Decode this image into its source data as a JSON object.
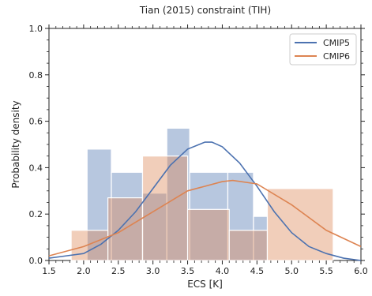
{
  "chart_data": {
    "type": "bar",
    "title": "Tian (2015) constraint (TIH)",
    "xlabel": "ECS [K]",
    "ylabel": "Probability density",
    "xlim": [
      1.5,
      6.0
    ],
    "ylim": [
      0.0,
      1.0
    ],
    "x_ticks": [
      "1.5",
      "2.0",
      "2.5",
      "3.0",
      "3.5",
      "4.0",
      "4.5",
      "5.0",
      "5.5",
      "6.0"
    ],
    "y_ticks": [
      "0.0",
      "0.2",
      "0.4",
      "0.6",
      "0.8",
      "1.0"
    ],
    "legend_position": "top-right",
    "colors": {
      "CMIP5": "#4c72b0",
      "CMIP6": "#dd8452"
    },
    "histograms": [
      {
        "name": "CMIP5",
        "bins": [
          {
            "x0": 2.05,
            "x1": 2.4,
            "density": 0.48
          },
          {
            "x0": 2.4,
            "x1": 2.85,
            "density": 0.38
          },
          {
            "x0": 2.85,
            "x1": 3.2,
            "density": 0.29
          },
          {
            "x0": 3.2,
            "x1": 3.53,
            "density": 0.57
          },
          {
            "x0": 3.53,
            "x1": 4.08,
            "density": 0.38
          },
          {
            "x0": 4.08,
            "x1": 4.45,
            "density": 0.38
          },
          {
            "x0": 4.45,
            "x1": 4.65,
            "density": 0.19
          }
        ]
      },
      {
        "name": "CMIP6",
        "bins": [
          {
            "x0": 1.82,
            "x1": 2.35,
            "density": 0.13
          },
          {
            "x0": 2.35,
            "x1": 2.85,
            "density": 0.27
          },
          {
            "x0": 2.85,
            "x1": 3.5,
            "density": 0.45
          },
          {
            "x0": 3.5,
            "x1": 4.1,
            "density": 0.22
          },
          {
            "x0": 4.1,
            "x1": 4.65,
            "density": 0.13
          },
          {
            "x0": 4.65,
            "x1": 5.6,
            "density": 0.31
          }
        ]
      }
    ],
    "series": [
      {
        "name": "CMIP5",
        "x": [
          1.5,
          1.75,
          2.0,
          2.25,
          2.5,
          2.75,
          3.0,
          3.25,
          3.5,
          3.75,
          3.85,
          4.0,
          4.25,
          4.5,
          4.75,
          5.0,
          5.25,
          5.5,
          5.75,
          6.0
        ],
        "y": [
          0.01,
          0.02,
          0.03,
          0.07,
          0.13,
          0.21,
          0.31,
          0.41,
          0.48,
          0.51,
          0.51,
          0.49,
          0.42,
          0.32,
          0.21,
          0.12,
          0.06,
          0.03,
          0.01,
          0.0
        ]
      },
      {
        "name": "CMIP6",
        "x": [
          1.5,
          2.0,
          2.5,
          3.0,
          3.5,
          4.0,
          4.15,
          4.5,
          5.0,
          5.5,
          6.0
        ],
        "y": [
          0.02,
          0.06,
          0.12,
          0.21,
          0.3,
          0.34,
          0.345,
          0.33,
          0.24,
          0.13,
          0.06
        ]
      }
    ]
  }
}
